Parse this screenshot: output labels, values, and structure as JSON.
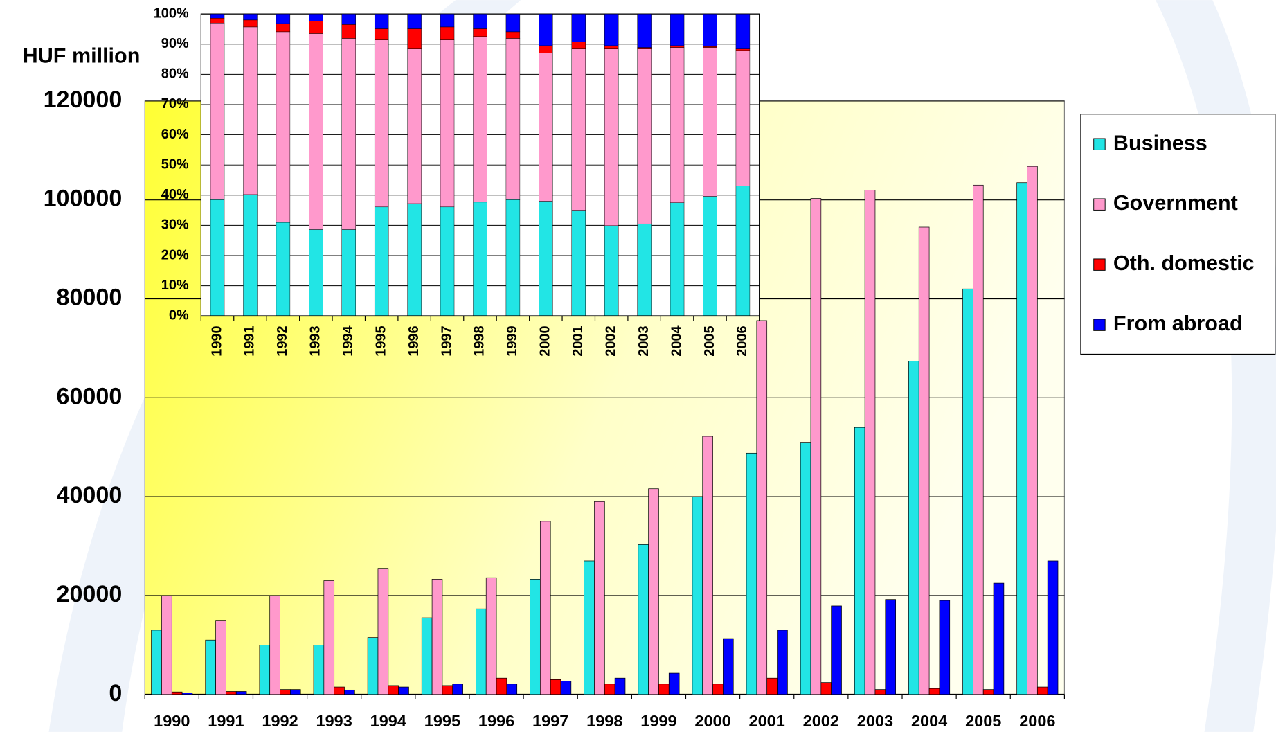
{
  "chart_data": [
    {
      "type": "bar",
      "y_label": "HUF million",
      "categories": [
        "1990",
        "1991",
        "1992",
        "1993",
        "1994",
        "1995",
        "1996",
        "1997",
        "1998",
        "1999",
        "2000",
        "2001",
        "2002",
        "2003",
        "2004",
        "2005",
        "2006"
      ],
      "series": [
        {
          "name": "Business",
          "color": "#22e5e5",
          "values": [
            13000,
            11000,
            10000,
            10000,
            11500,
            15500,
            17300,
            23300,
            27000,
            30300,
            40000,
            48800,
            51000,
            54000,
            67400,
            82000,
            103500
          ]
        },
        {
          "name": "Government",
          "color": "#ff99cc",
          "values": [
            20000,
            15000,
            20000,
            23000,
            25500,
            23300,
            23600,
            35000,
            39000,
            41600,
            52200,
            75600,
            100300,
            102000,
            94500,
            103000,
            106800
          ]
        },
        {
          "name": "Oth. domestic",
          "color": "#ff0000",
          "values": [
            500,
            600,
            1000,
            1500,
            1800,
            1800,
            3300,
            3000,
            2100,
            2100,
            2100,
            3300,
            2400,
            1000,
            1200,
            1000,
            1500
          ]
        },
        {
          "name": "From abroad",
          "color": "#0000ff",
          "values": [
            300,
            600,
            1000,
            900,
            1500,
            2100,
            2100,
            2700,
            3300,
            4300,
            11300,
            13000,
            17900,
            19200,
            19000,
            22500,
            27000
          ]
        }
      ],
      "ylim": [
        0,
        120000
      ],
      "yticks": [
        0,
        20000,
        40000,
        60000,
        80000,
        100000,
        120000
      ],
      "grid": true,
      "legend": "right"
    },
    {
      "type": "stacked_bar_percent",
      "categories": [
        "1990",
        "1991",
        "1992",
        "1993",
        "1994",
        "1995",
        "1996",
        "1997",
        "1998",
        "1999",
        "2000",
        "2001",
        "2002",
        "2003",
        "2004",
        "2005",
        "2006"
      ],
      "series": [
        {
          "color": "#22e5e5",
          "values": [
            38.5,
            40.2,
            31.0,
            28.6,
            28.6,
            36.1,
            37.2,
            36.1,
            37.7,
            38.5,
            38.0,
            35.0,
            29.9,
            30.5,
            37.5,
            39.6,
            43.1
          ]
        },
        {
          "color": "#ff99cc",
          "values": [
            58.5,
            55.5,
            63.1,
            64.9,
            63.3,
            55.3,
            51.2,
            55.3,
            54.8,
            53.4,
            49.1,
            53.4,
            58.5,
            57.9,
            51.4,
            49.3,
            44.8
          ]
        },
        {
          "color": "#ff0000",
          "values": [
            1.6,
            2.3,
            2.7,
            4.1,
            4.6,
            3.7,
            6.7,
            4.3,
            2.6,
            2.2,
            2.4,
            2.4,
            1.1,
            0.5,
            0.6,
            0.3,
            0.5
          ]
        },
        {
          "color": "#0000ff",
          "values": [
            1.4,
            2.0,
            3.2,
            2.4,
            3.5,
            4.9,
            4.9,
            4.3,
            4.9,
            5.9,
            10.5,
            9.2,
            10.5,
            11.1,
            10.5,
            10.8,
            11.6
          ]
        }
      ],
      "ylim": [
        0,
        100
      ],
      "yticks": [
        {
          "value": 0,
          "label": "0%"
        },
        {
          "value": 10,
          "label": "10%"
        },
        {
          "value": 20,
          "label": "20%"
        },
        {
          "value": 30,
          "label": "30%"
        },
        {
          "value": 40,
          "label": "40%"
        },
        {
          "value": 50,
          "label": "50%"
        },
        {
          "value": 60,
          "label": "60%"
        },
        {
          "value": 70,
          "label": "70%"
        },
        {
          "value": 80,
          "label": "80%"
        },
        {
          "value": 90,
          "label": "90%"
        },
        {
          "value": 100,
          "label": "100%"
        }
      ],
      "grid": true
    }
  ]
}
